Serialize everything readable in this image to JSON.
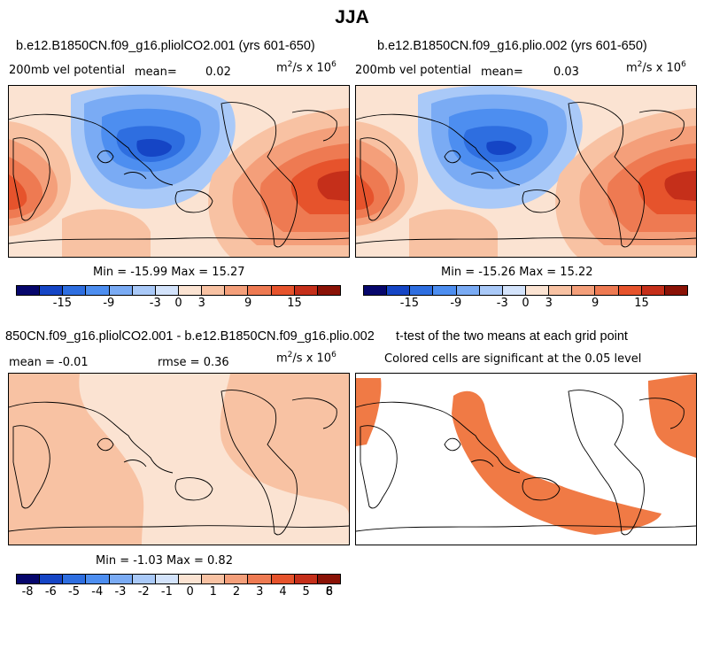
{
  "title": "JJA",
  "colors": {
    "scale": [
      "#06066c",
      "#1545c5",
      "#2e6ee0",
      "#4d8ef0",
      "#7aabf4",
      "#a9c9f8",
      "#d3e3fb",
      "#fbe3d2",
      "#f8c2a3",
      "#f49f7a",
      "#ee7a52",
      "#e6532c",
      "#c52f1a",
      "#8a1206"
    ],
    "sig": "#f07a45",
    "coast": "#000000"
  },
  "chart_data": [
    {
      "type": "heatmap",
      "id": "panel-1",
      "title": "b.e12.B1850CN.f09_g16.pliolCO2.001 (yrs 601-650)",
      "variable": "200mb vel potential",
      "mean_label": "mean=",
      "mean": "0.02",
      "units": "m",
      "units_sup": "2",
      "units_tail": "/s x 10",
      "units_exp": "6",
      "stats": "Min = -15.99 Max =  15.27",
      "min": -15.99,
      "max": 15.27,
      "colorbar_labels": [
        "-15",
        "-9",
        "-3",
        "0",
        "3",
        "9",
        "15"
      ]
    },
    {
      "type": "heatmap",
      "id": "panel-2",
      "title": "b.e12.B1850CN.f09_g16.plio.002 (yrs 601-650)",
      "variable": "200mb vel potential",
      "mean_label": "mean=",
      "mean": "0.03",
      "units": "m",
      "units_sup": "2",
      "units_tail": "/s x 10",
      "units_exp": "6",
      "stats": "Min = -15.26 Max =  15.22",
      "min": -15.26,
      "max": 15.22,
      "colorbar_labels": [
        "-15",
        "-9",
        "-3",
        "0",
        "3",
        "9",
        "15"
      ]
    },
    {
      "type": "heatmap",
      "id": "panel-3",
      "title": "850CN.f09_g16.pliolCO2.001 - b.e12.B1850CN.f09_g16.plio.002",
      "mean_text": "mean =  -0.01",
      "rmse_text": "rmse =   0.36",
      "units": "m",
      "units_sup": "2",
      "units_tail": "/s x 10",
      "units_exp": "6",
      "stats": "Min =  -1.03 Max =   0.82",
      "min": -1.03,
      "max": 0.82,
      "colorbar_labels": [
        "-8",
        "-6",
        "-5",
        "-4",
        "-3",
        "-2",
        "-1",
        "0",
        "1",
        "2",
        "3",
        "4",
        "5",
        "6",
        "8"
      ]
    },
    {
      "type": "heatmap",
      "id": "panel-4",
      "title": "t-test of the two means at each grid point",
      "subtitle": "Colored cells are significant at the 0.05 level",
      "significance_level": 0.05
    }
  ]
}
